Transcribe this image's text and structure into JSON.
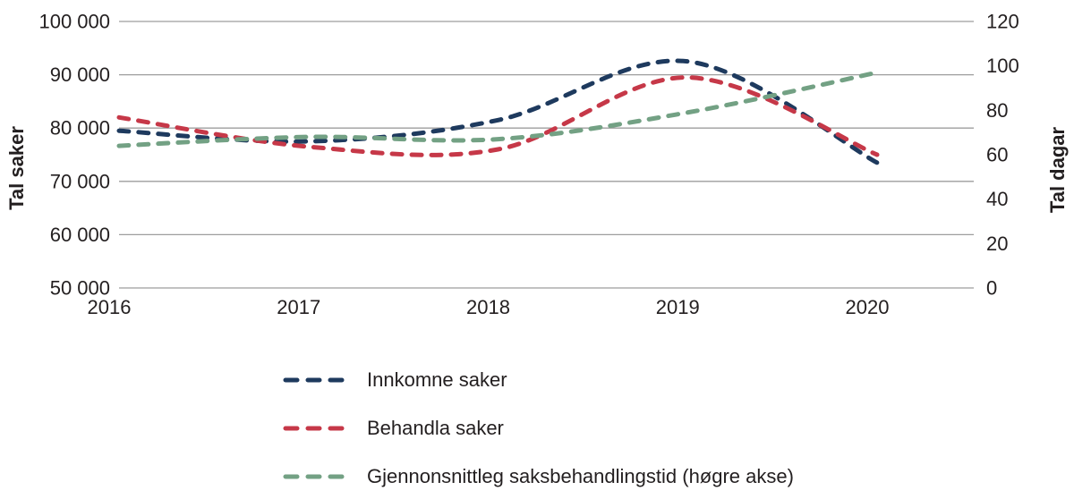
{
  "chart_data": {
    "type": "line",
    "title": "",
    "grid": "horizontal",
    "legend_position": "bottom-left",
    "x_tick_labels": [
      "2016",
      "2017",
      "2018",
      "2019",
      "2020"
    ],
    "left_axis": {
      "label": "Tal saker",
      "min": 50000,
      "max": 100000,
      "ticks": [
        "100 000",
        "90 000",
        "80 000",
        "70 000",
        "60 000",
        "50 000"
      ],
      "tick_values": [
        100000,
        90000,
        80000,
        70000,
        60000,
        50000
      ]
    },
    "right_axis": {
      "label": "Tal dagar",
      "min": 0,
      "max": 120,
      "ticks": [
        "120",
        "100",
        "80",
        "60",
        "40",
        "20",
        "0"
      ],
      "tick_values": [
        120,
        100,
        80,
        60,
        40,
        20,
        0
      ]
    },
    "series": [
      {
        "name": "Innkomne saker",
        "axis": "left",
        "color": "#1e3a5e",
        "style": "dashed",
        "values": [
          79500,
          77500,
          81500,
          92500,
          73500
        ]
      },
      {
        "name": "Behandla saker",
        "axis": "left",
        "color": "#c63848",
        "style": "dashed",
        "values": [
          82000,
          76500,
          76000,
          89500,
          75000
        ]
      },
      {
        "name": "Gjennonsnittleg saksbehandlingstid (høgre akse)",
        "axis": "right",
        "color": "#73a184",
        "style": "dashed",
        "values": [
          64,
          68,
          67,
          79,
          97
        ]
      }
    ],
    "colors": {
      "gridline": "#9d9d9d",
      "text": "#231f20",
      "background": "#ffffff"
    }
  }
}
